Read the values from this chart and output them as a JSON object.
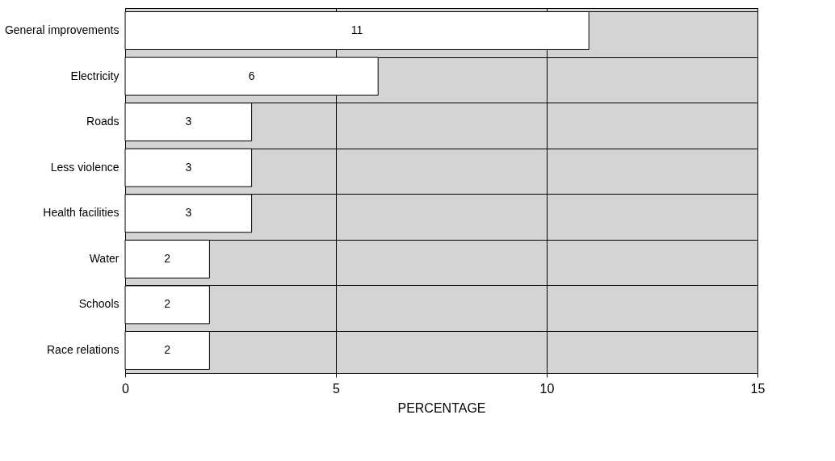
{
  "chart_data": {
    "type": "bar",
    "orientation": "horizontal",
    "categories": [
      "General improvements",
      "Electricity",
      "Roads",
      "Less violence",
      "Health facilities",
      "Water",
      "Schools",
      "Race relations"
    ],
    "values": [
      11,
      6,
      3,
      3,
      3,
      2,
      2,
      2
    ],
    "color": "#ffffff",
    "xlim": [
      0,
      15
    ],
    "xticks": [
      0,
      5,
      10,
      15
    ],
    "xlabel": "PERCENTAGE",
    "grid": true,
    "data_labels": true
  }
}
